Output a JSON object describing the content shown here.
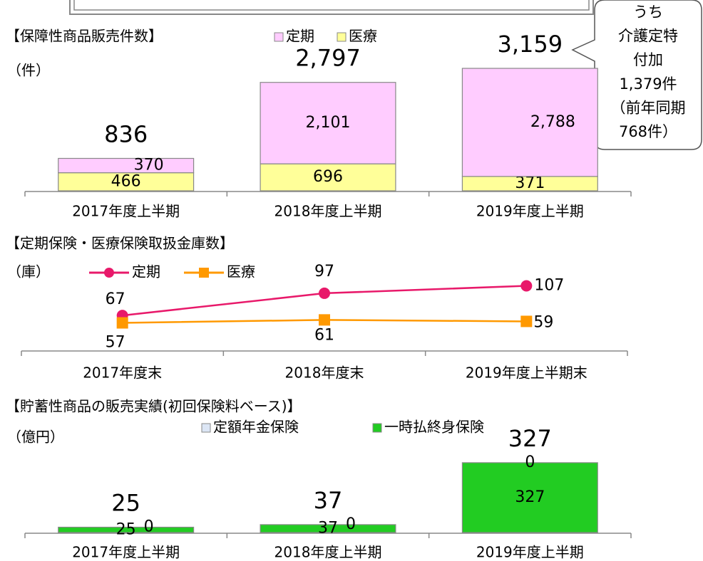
{
  "chart_data": [
    {
      "type": "bar",
      "stacked": true,
      "title": "【保障性商品販売件数】",
      "unit": "（件）",
      "categories": [
        "2017年度上半期",
        "2018年度上半期",
        "2019年度上半期"
      ],
      "series": [
        {
          "name": "医療",
          "color": "#ffff99",
          "values": [
            466,
            696,
            371
          ]
        },
        {
          "name": "定期",
          "color": "#ffccff",
          "values": [
            370,
            2101,
            2788
          ],
          "value_labels": [
            "370",
            "2,101",
            "2,788"
          ]
        }
      ],
      "totals": [
        836,
        2797,
        3159
      ],
      "total_labels": [
        "836",
        "2,797",
        "3,159"
      ],
      "ylim": [
        0,
        3600
      ],
      "annotation": [
        "うち",
        "介護定特",
        "付加",
        "1,379件",
        "（前年同期",
        "768件）"
      ]
    },
    {
      "type": "line",
      "title": "【定期保険・医療保険取扱金庫数】",
      "unit": "（庫）",
      "categories": [
        "2017年度末",
        "2018年度末",
        "2019年度上半期末"
      ],
      "series": [
        {
          "name": "定期",
          "color": "#e8196a",
          "marker": "circle",
          "values": [
            67,
            97,
            107
          ]
        },
        {
          "name": "医療",
          "color": "#ff9900",
          "marker": "square",
          "values": [
            57,
            61,
            59
          ]
        }
      ],
      "ylim": [
        20,
        120
      ]
    },
    {
      "type": "bar",
      "stacked": true,
      "title": "【貯蓄性商品の販売実績(初回保険料ベース)】",
      "unit": "（億円）",
      "categories": [
        "2017年度上半期",
        "2018年度上半期",
        "2019年度上半期"
      ],
      "series": [
        {
          "name": "一時払終身保険",
          "color": "#22cc22",
          "values": [
            25,
            37,
            327
          ]
        },
        {
          "name": "定額年金保険",
          "color": "#dce6f5",
          "values": [
            0,
            0,
            0
          ]
        }
      ],
      "totals": [
        25,
        37,
        327
      ],
      "ylim": [
        0,
        360
      ]
    }
  ]
}
